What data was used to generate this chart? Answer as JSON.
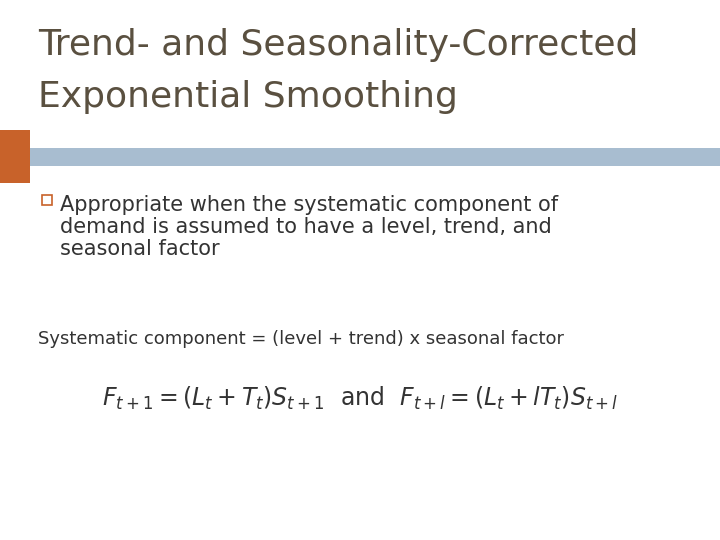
{
  "title_line1": "Trend- and Seasonality-Corrected",
  "title_line2": "Exponential Smoothing",
  "title_color": "#5a5040",
  "title_fontsize": 26,
  "blue_bar_color": "#a8bdd0",
  "orange_sq_color": "#c8622a",
  "bullet_text_line1": "Appropriate when the systematic component of",
  "bullet_text_line2": "demand is assumed to have a level, trend, and",
  "bullet_text_line3": "seasonal factor",
  "bullet_fontsize": 15,
  "systematic_text": "Systematic component = (level + trend) x seasonal factor",
  "systematic_fontsize": 13,
  "formula_fontsize": 17,
  "bg_color": "#ffffff",
  "text_color": "#333333",
  "title_bg_color": "#ffffff"
}
